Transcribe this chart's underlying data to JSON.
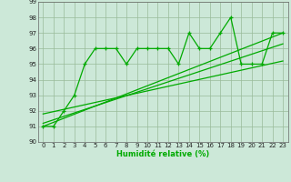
{
  "xlabel": "Humidité relative (%)",
  "xlim": [
    -0.5,
    23.5
  ],
  "ylim": [
    90,
    99
  ],
  "yticks": [
    90,
    91,
    92,
    93,
    94,
    95,
    96,
    97,
    98,
    99
  ],
  "xticks": [
    0,
    1,
    2,
    3,
    4,
    5,
    6,
    7,
    8,
    9,
    10,
    11,
    12,
    13,
    14,
    15,
    16,
    17,
    18,
    19,
    20,
    21,
    22,
    23
  ],
  "main_x": [
    0,
    1,
    2,
    3,
    4,
    5,
    6,
    7,
    8,
    9,
    10,
    11,
    12,
    13,
    14,
    15,
    16,
    17,
    18,
    19,
    20,
    21,
    22,
    23
  ],
  "main_y": [
    91,
    91,
    92,
    93,
    95,
    96,
    96,
    96,
    95,
    96,
    96,
    96,
    96,
    95,
    97,
    96,
    96,
    97,
    98,
    95,
    95,
    95,
    97,
    97
  ],
  "trend1_x": [
    0,
    23
  ],
  "trend1_y": [
    91.0,
    97.0
  ],
  "trend2_x": [
    0,
    23
  ],
  "trend2_y": [
    91.2,
    96.3
  ],
  "trend3_x": [
    0,
    23
  ],
  "trend3_y": [
    91.8,
    95.2
  ],
  "line_color": "#00aa00",
  "bg_color": "#cce8d8",
  "grid_color": "#99bb99"
}
